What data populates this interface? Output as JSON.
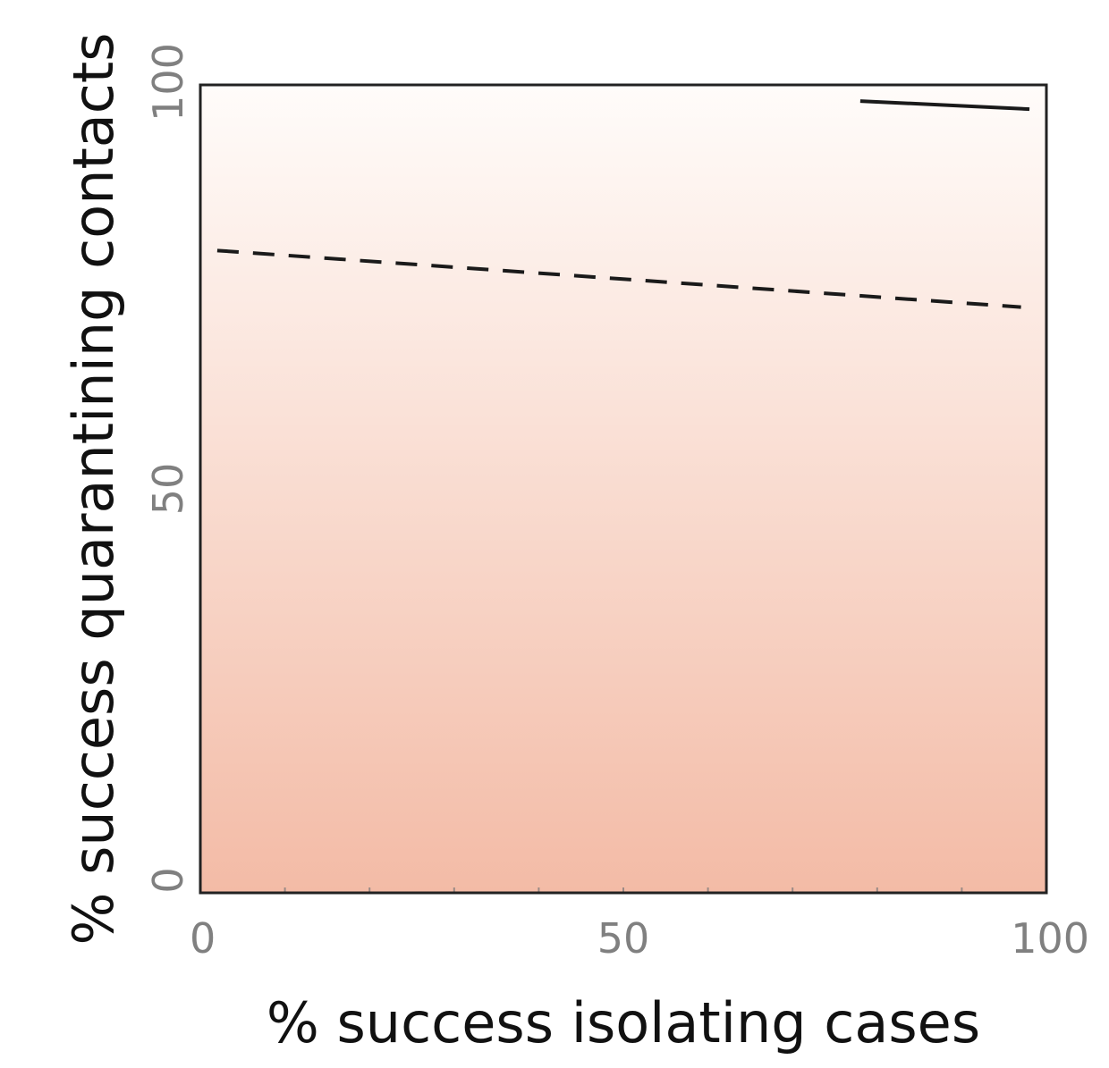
{
  "chart_data": {
    "type": "heatmap",
    "title": "",
    "xlabel": "% success isolating cases",
    "ylabel": "% success quarantining contacts",
    "xlim": [
      0,
      100
    ],
    "ylim": [
      0,
      100
    ],
    "x_ticks": [
      {
        "value": 0,
        "label": "0"
      },
      {
        "value": 50,
        "label": "50"
      },
      {
        "value": 100,
        "label": "100"
      }
    ],
    "y_ticks": [
      {
        "value": 0,
        "label": "0"
      },
      {
        "value": 50,
        "label": "50"
      },
      {
        "value": 100,
        "label": "100"
      }
    ],
    "colors": {
      "low": "#f3bba6",
      "high": "#fffcfa",
      "tick_label": "#808080",
      "axis_title": "#111111",
      "line": "#1a1a1a",
      "frame": "#222222"
    },
    "heatmap": {
      "variable": "color intensity increasing toward 0% quarantine success",
      "gradient_direction": "vertical",
      "note": "colour scale without visible legend"
    },
    "series": [
      {
        "name": "dashed contour",
        "style": "dashed",
        "x": [
          2,
          97
        ],
        "y": [
          79.5,
          72.5
        ]
      },
      {
        "name": "solid contour",
        "style": "solid",
        "x": [
          78,
          98
        ],
        "y": [
          98,
          97
        ]
      }
    ]
  }
}
